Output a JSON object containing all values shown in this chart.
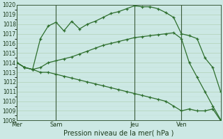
{
  "bg_color": "#cce8e4",
  "plot_bg_color": "#cce8e4",
  "grid_color_major": "#aaccaa",
  "grid_color_minor": "#bbddcc",
  "line_color": "#2d6e2d",
  "ylim": [
    1008,
    1020
  ],
  "xlim": [
    0,
    26
  ],
  "yticks": [
    1008,
    1009,
    1010,
    1011,
    1012,
    1013,
    1014,
    1015,
    1016,
    1017,
    1018,
    1019,
    1020
  ],
  "xlabel": "Pression niveau de la mer( hPa )",
  "day_labels": [
    "Mer",
    "Sam",
    "Jeu",
    "Ven"
  ],
  "day_positions": [
    0,
    5,
    15,
    21
  ],
  "line1_x": [
    0,
    1,
    2,
    3,
    4,
    5,
    6,
    7,
    8,
    9,
    10,
    11,
    12,
    13,
    14,
    15,
    16,
    17,
    18,
    19,
    20,
    21,
    22,
    23,
    24,
    25,
    26
  ],
  "line1_y": [
    1014.0,
    1013.5,
    1013.3,
    1016.5,
    1017.8,
    1018.2,
    1017.3,
    1018.3,
    1017.5,
    1018.0,
    1018.3,
    1018.7,
    1019.1,
    1019.3,
    1019.6,
    1019.9,
    1019.8,
    1019.8,
    1019.6,
    1019.2,
    1018.7,
    1017.0,
    1016.8,
    1016.5,
    1014.5,
    1013.5,
    1011.0
  ],
  "line2_x": [
    0,
    1,
    2,
    3,
    4,
    5,
    6,
    7,
    8,
    9,
    10,
    11,
    12,
    13,
    14,
    15,
    16,
    17,
    18,
    19,
    20,
    21,
    22,
    23,
    24,
    25,
    26
  ],
  "line2_y": [
    1014.0,
    1013.5,
    1013.3,
    1013.5,
    1014.0,
    1014.2,
    1014.4,
    1014.6,
    1014.9,
    1015.2,
    1015.5,
    1015.8,
    1016.0,
    1016.2,
    1016.4,
    1016.6,
    1016.7,
    1016.8,
    1016.9,
    1017.0,
    1017.1,
    1016.5,
    1014.0,
    1012.5,
    1011.0,
    1009.5,
    1008.1
  ],
  "line3_x": [
    0,
    1,
    2,
    3,
    4,
    5,
    6,
    7,
    8,
    9,
    10,
    11,
    12,
    13,
    14,
    15,
    16,
    17,
    18,
    19,
    20,
    21,
    22,
    23,
    24,
    25,
    26
  ],
  "line3_y": [
    1014.0,
    1013.5,
    1013.3,
    1013.0,
    1013.0,
    1012.8,
    1012.6,
    1012.4,
    1012.2,
    1012.0,
    1011.8,
    1011.6,
    1011.4,
    1011.2,
    1011.0,
    1010.8,
    1010.6,
    1010.4,
    1010.2,
    1010.0,
    1009.5,
    1009.0,
    1009.2,
    1009.0,
    1009.0,
    1009.2,
    1008.0
  ]
}
